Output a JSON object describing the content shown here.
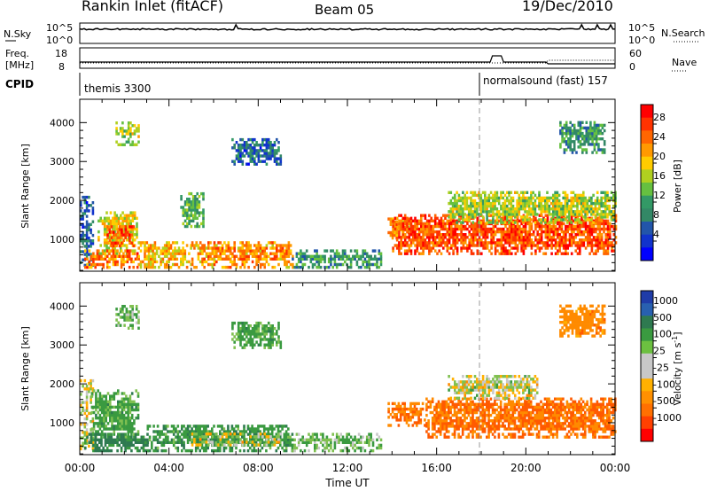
{
  "header": {
    "site": "Rankin Inlet (fitACF)",
    "beam": "Beam 05",
    "date": "19/Dec/2010"
  },
  "summary_panels": {
    "nsky_label": "N.Sky",
    "nsky_ticks": [
      "10^5",
      "10^0"
    ],
    "nsearch_label": "N.Search",
    "nsearch_ticks": [
      "10^5",
      "10^0"
    ],
    "freq_label": "Freq.",
    "freq_unit": "[MHz]",
    "freq_ticks": [
      "18",
      "8"
    ],
    "nave_label": "Nave",
    "nave_ticks": [
      "60",
      "0"
    ],
    "cpid_label": "CPID",
    "cpid_segments": [
      {
        "label": "themis 3300",
        "start_hour": 0
      },
      {
        "label": "normalsound (fast) 157",
        "start_hour": 18
      }
    ]
  },
  "colorbars": {
    "power": {
      "title": "Power [dB]",
      "ticks": [
        "28",
        "24",
        "20",
        "16",
        "12",
        "8",
        "4"
      ],
      "colors": [
        "#ff0000",
        "#ff3300",
        "#ff6600",
        "#ff9900",
        "#ffcc00",
        "#b0d020",
        "#66c040",
        "#339966",
        "#338866",
        "#2255aa",
        "#1133cc",
        "#0000ff"
      ]
    },
    "velocity": {
      "title": "Velocity [m s",
      "title_sup": "-1",
      "title_end": "]",
      "ticks": [
        "1000",
        "500",
        "100",
        "25",
        "-25",
        "-100",
        "-500",
        "-1000"
      ],
      "colors": [
        "#1f3ca8",
        "#2860b0",
        "#2e7a50",
        "#3a9a40",
        "#6cc040",
        "#c8c8c8",
        "#c8c8c8",
        "#ffb000",
        "#ff9000",
        "#ff7000",
        "#ff4000",
        "#ff0000"
      ]
    }
  },
  "chart_data": [
    {
      "type": "heatmap",
      "title": "Power",
      "xlabel": "",
      "ylabel": "Slant Range [km]",
      "xlim": [
        0,
        24
      ],
      "ylim": [
        180,
        4600
      ],
      "yticks": [
        "4000",
        "3000",
        "2000",
        "1000"
      ],
      "grid": false,
      "regions": [
        {
          "t": [
            0.0,
            0.6
          ],
          "r": [
            300,
            2100
          ],
          "value": 8
        },
        {
          "t": [
            0.8,
            2.6
          ],
          "r": [
            600,
            1700
          ],
          "value": 20
        },
        {
          "t": [
            1.2,
            2.4
          ],
          "r": [
            800,
            1300
          ],
          "value": 28
        },
        {
          "t": [
            1.6,
            2.6
          ],
          "r": [
            3400,
            4000
          ],
          "value": 18
        },
        {
          "t": [
            0.2,
            2.6
          ],
          "r": [
            250,
            700
          ],
          "value": 26
        },
        {
          "t": [
            2.6,
            5.0
          ],
          "r": [
            250,
            900
          ],
          "value": 22
        },
        {
          "t": [
            4.5,
            5.5
          ],
          "r": [
            1300,
            2200
          ],
          "value": 14
        },
        {
          "t": [
            5.0,
            9.5
          ],
          "r": [
            250,
            900
          ],
          "value": 24
        },
        {
          "t": [
            6.8,
            9.0
          ],
          "r": [
            2900,
            3600
          ],
          "value": 8
        },
        {
          "t": [
            9.5,
            13.5
          ],
          "r": [
            250,
            700
          ],
          "value": 12
        },
        {
          "t": [
            13.8,
            14.8
          ],
          "r": [
            1000,
            1500
          ],
          "value": 24
        },
        {
          "t": [
            14.0,
            24.0
          ],
          "r": [
            600,
            1600
          ],
          "value": 28
        },
        {
          "t": [
            16.5,
            24.0
          ],
          "r": [
            1400,
            2200
          ],
          "value": 18
        },
        {
          "t": [
            21.5,
            23.5
          ],
          "r": [
            3200,
            4000
          ],
          "value": 12
        }
      ]
    },
    {
      "type": "heatmap",
      "title": "Velocity",
      "xlabel": "Time UT",
      "ylabel": "Slant Range [km]",
      "xlim": [
        0,
        24
      ],
      "ylim": [
        180,
        4600
      ],
      "xticks": [
        "00:00",
        "04:00",
        "08:00",
        "12:00",
        "16:00",
        "20:00",
        "00:00"
      ],
      "yticks": [
        "4000",
        "3000",
        "2000",
        "1000"
      ],
      "grid": false,
      "regions": [
        {
          "t": [
            0.0,
            0.6
          ],
          "r": [
            300,
            2100
          ],
          "value": 0
        },
        {
          "t": [
            0.5,
            2.6
          ],
          "r": [
            600,
            1800
          ],
          "value": 150
        },
        {
          "t": [
            0.2,
            3.0
          ],
          "r": [
            250,
            700
          ],
          "value": 300
        },
        {
          "t": [
            3.0,
            9.5
          ],
          "r": [
            250,
            900
          ],
          "value": 200
        },
        {
          "t": [
            5.0,
            9.0
          ],
          "r": [
            400,
            700
          ],
          "value": 0
        },
        {
          "t": [
            1.6,
            2.6
          ],
          "r": [
            3400,
            4000
          ],
          "value": 100
        },
        {
          "t": [
            6.8,
            9.0
          ],
          "r": [
            2900,
            3600
          ],
          "value": 150
        },
        {
          "t": [
            9.5,
            13.5
          ],
          "r": [
            250,
            700
          ],
          "value": 100
        },
        {
          "t": [
            13.8,
            15.5
          ],
          "r": [
            900,
            1500
          ],
          "value": -300
        },
        {
          "t": [
            15.5,
            24.0
          ],
          "r": [
            600,
            1600
          ],
          "value": -300
        },
        {
          "t": [
            16.5,
            20.5
          ],
          "r": [
            1600,
            2200
          ],
          "value": 0
        },
        {
          "t": [
            21.5,
            23.5
          ],
          "r": [
            3200,
            4000
          ],
          "value": -200
        }
      ]
    }
  ]
}
